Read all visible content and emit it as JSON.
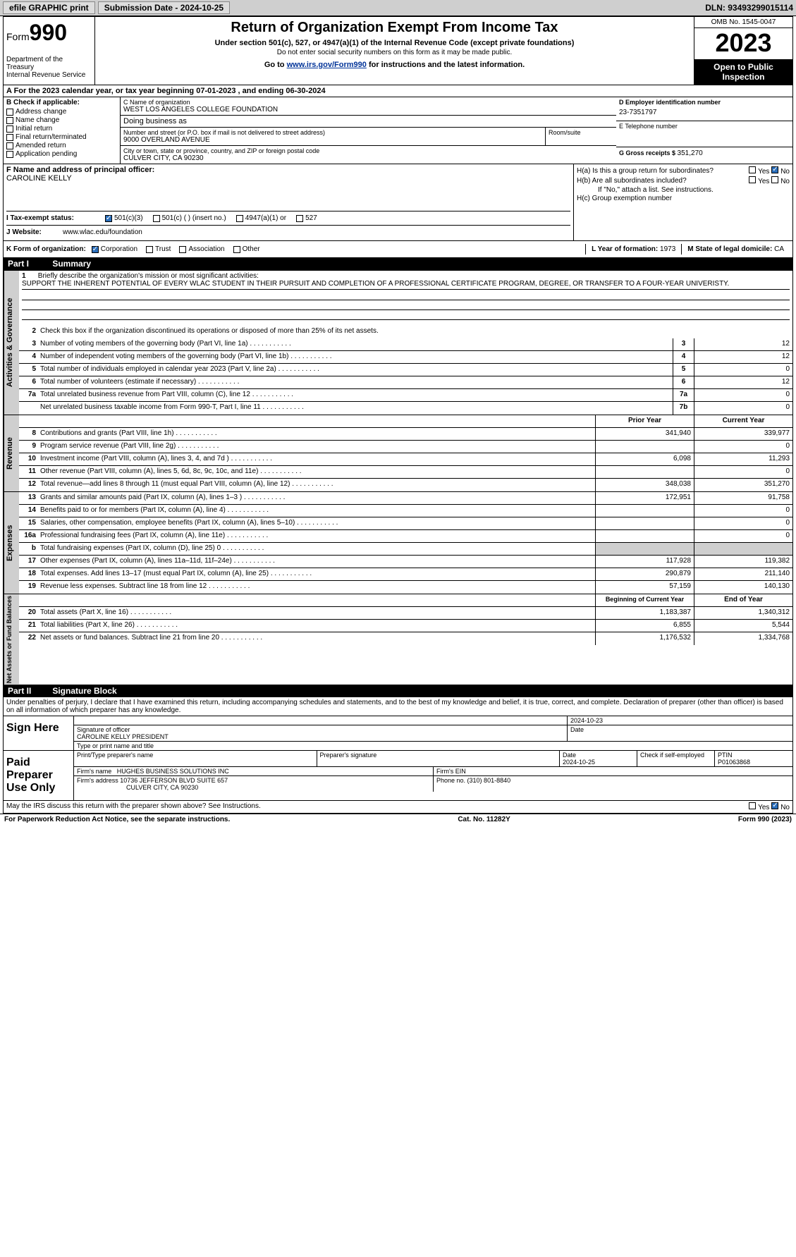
{
  "topbar": {
    "efile": "efile GRAPHIC print",
    "submission_label": "Submission Date - ",
    "submission_date": "2024-10-25",
    "dln_label": "DLN: ",
    "dln": "93493299015114"
  },
  "header": {
    "form_prefix": "Form",
    "form_no": "990",
    "dept": "Department of the Treasury",
    "irs": "Internal Revenue Service",
    "title": "Return of Organization Exempt From Income Tax",
    "under": "Under section 501(c), 527, or 4947(a)(1) of the Internal Revenue Code (except private foundations)",
    "ssn": "Do not enter social security numbers on this form as it may be made public.",
    "goto": "Go to ",
    "goto_link": "www.irs.gov/Form990",
    "goto_suffix": " for instructions and the latest information.",
    "omb": "OMB No. 1545-0047",
    "year": "2023",
    "inspect": "Open to Public Inspection"
  },
  "row_a": {
    "text_a": "A For the 2023 calendar year, or tax year beginning ",
    "begin": "07-01-2023",
    "mid": " , and ending ",
    "end": "06-30-2024"
  },
  "col_b": {
    "lead": "B Check if applicable:",
    "items": [
      "Address change",
      "Name change",
      "Initial return",
      "Final return/terminated",
      "Amended return",
      "Application pending"
    ]
  },
  "col_c": {
    "name_lbl": "C Name of organization",
    "name": "WEST LOS ANGELES COLLEGE FOUNDATION",
    "dba_lbl": "Doing business as",
    "dba": "",
    "street_lbl": "Number and street (or P.O. box if mail is not delivered to street address)",
    "street": "9000 OVERLAND AVENUE",
    "room_lbl": "Room/suite",
    "room": "",
    "city_lbl": "City or town, state or province, country, and ZIP or foreign postal code",
    "city": "CULVER CITY, CA  90230"
  },
  "col_d": {
    "d_lbl": "D Employer identification number",
    "d_val": "23-7351797",
    "e_lbl": "E Telephone number",
    "e_val": "",
    "g_lbl": "G Gross receipts $ ",
    "g_val": "351,270"
  },
  "sec_f": {
    "f_lbl": "F Name and address of principal officer:",
    "f_name": "CAROLINE KELLY",
    "ha": "H(a)  Is this a group return for subordinates?",
    "hb": "H(b)  Are all subordinates included?",
    "hb_note": "If \"No,\" attach a list. See instructions.",
    "hc": "H(c)  Group exemption number ",
    "yes": "Yes",
    "no": "No"
  },
  "i_row": {
    "lbl": "I     Tax-exempt status:",
    "opts": [
      "501(c)(3)",
      "501(c) (  ) (insert no.)",
      "4947(a)(1) or",
      "527"
    ]
  },
  "j_row": {
    "lbl": "J    Website: ",
    "val": "www.wlac.edu/foundation"
  },
  "k_row": {
    "lbl": "K Form of organization:",
    "opts": [
      "Corporation",
      "Trust",
      "Association",
      "Other"
    ],
    "l_lbl": "L Year of formation: ",
    "l_val": "1973",
    "m_lbl": "M State of legal domicile: ",
    "m_val": "CA"
  },
  "part1": {
    "hdr_no": "Part I",
    "hdr_title": "Summary",
    "q1_lbl": "1",
    "q1_txt": "Briefly describe the organization's mission or most significant activities:",
    "q1_val": "SUPPORT THE INHERENT POTENTIAL OF EVERY WLAC STUDENT IN THEIR PURSUIT AND COMPLETION OF A PROFESSIONAL CERTIFICATE PROGRAM, DEGREE, OR TRANSFER TO A FOUR-YEAR UNIVERISTY.",
    "q2_txt": "Check this box     if the organization discontinued its operations or disposed of more than 25% of its net assets.",
    "vtab_ag": "Activities & Governance",
    "vtab_rev": "Revenue",
    "vtab_exp": "Expenses",
    "vtab_net": "Net Assets or Fund Balances",
    "rows_ag": [
      {
        "no": "3",
        "txt": "Number of voting members of the governing body (Part VI, line 1a)",
        "box": "3",
        "amt": "12"
      },
      {
        "no": "4",
        "txt": "Number of independent voting members of the governing body (Part VI, line 1b)",
        "box": "4",
        "amt": "12"
      },
      {
        "no": "5",
        "txt": "Total number of individuals employed in calendar year 2023 (Part V, line 2a)",
        "box": "5",
        "amt": "0"
      },
      {
        "no": "6",
        "txt": "Total number of volunteers (estimate if necessary)",
        "box": "6",
        "amt": "12"
      },
      {
        "no": "7a",
        "txt": "Total unrelated business revenue from Part VIII, column (C), line 12",
        "box": "7a",
        "amt": "0"
      },
      {
        "no": "",
        "txt": "Net unrelated business taxable income from Form 990-T, Part I, line 11",
        "box": "7b",
        "amt": "0"
      }
    ],
    "col_hdr_prior": "Prior Year",
    "col_hdr_curr": "Current Year",
    "rows_rev": [
      {
        "no": "8",
        "txt": "Contributions and grants (Part VIII, line 1h)",
        "p": "341,940",
        "c": "339,977"
      },
      {
        "no": "9",
        "txt": "Program service revenue (Part VIII, line 2g)",
        "p": "",
        "c": "0"
      },
      {
        "no": "10",
        "txt": "Investment income (Part VIII, column (A), lines 3, 4, and 7d )",
        "p": "6,098",
        "c": "11,293"
      },
      {
        "no": "11",
        "txt": "Other revenue (Part VIII, column (A), lines 5, 6d, 8c, 9c, 10c, and 11e)",
        "p": "",
        "c": "0"
      },
      {
        "no": "12",
        "txt": "Total revenue—add lines 8 through 11 (must equal Part VIII, column (A), line 12)",
        "p": "348,038",
        "c": "351,270"
      }
    ],
    "rows_exp": [
      {
        "no": "13",
        "txt": "Grants and similar amounts paid (Part IX, column (A), lines 1–3 )",
        "p": "172,951",
        "c": "91,758"
      },
      {
        "no": "14",
        "txt": "Benefits paid to or for members (Part IX, column (A), line 4)",
        "p": "",
        "c": "0"
      },
      {
        "no": "15",
        "txt": "Salaries, other compensation, employee benefits (Part IX, column (A), lines 5–10)",
        "p": "",
        "c": "0"
      },
      {
        "no": "16a",
        "txt": "Professional fundraising fees (Part IX, column (A), line 11e)",
        "p": "",
        "c": "0"
      },
      {
        "no": "b",
        "txt": "Total fundraising expenses (Part IX, column (D), line 25) 0",
        "p": "shade",
        "c": "shade"
      },
      {
        "no": "17",
        "txt": "Other expenses (Part IX, column (A), lines 11a–11d, 11f–24e)",
        "p": "117,928",
        "c": "119,382"
      },
      {
        "no": "18",
        "txt": "Total expenses. Add lines 13–17 (must equal Part IX, column (A), line 25)",
        "p": "290,879",
        "c": "211,140"
      },
      {
        "no": "19",
        "txt": "Revenue less expenses. Subtract line 18 from line 12",
        "p": "57,159",
        "c": "140,130"
      }
    ],
    "col_hdr_begin": "Beginning of Current Year",
    "col_hdr_end": "End of Year",
    "rows_net": [
      {
        "no": "20",
        "txt": "Total assets (Part X, line 16)",
        "p": "1,183,387",
        "c": "1,340,312"
      },
      {
        "no": "21",
        "txt": "Total liabilities (Part X, line 26)",
        "p": "6,855",
        "c": "5,544"
      },
      {
        "no": "22",
        "txt": "Net assets or fund balances. Subtract line 21 from line 20",
        "p": "1,176,532",
        "c": "1,334,768"
      }
    ]
  },
  "part2": {
    "hdr_no": "Part II",
    "hdr_title": "Signature Block",
    "perjury": "Under penalties of perjury, I declare that I have examined this return, including accompanying schedules and statements, and to the best of my knowledge and belief, it is true, correct, and complete. Declaration of preparer (other than officer) is based on all information of which preparer has any knowledge.",
    "sign_here": "Sign Here",
    "sig_officer_lbl": "Signature of officer",
    "sig_officer": "CAROLINE KELLY PRESIDENT",
    "sig_type_lbl": "Type or print name and title",
    "sig_date": "2024-10-23",
    "date_lbl": "Date",
    "paid_prep": "Paid Preparer Use Only",
    "prep_name_lbl": "Print/Type preparer's name",
    "prep_sig_lbl": "Preparer's signature",
    "prep_date": "2024-10-25",
    "check_if": "Check     if self-employed",
    "ptin_lbl": "PTIN",
    "ptin": "P01063868",
    "firm_name_lbl": "Firm's name ",
    "firm_name": "HUGHES BUSINESS SOLUTIONS INC",
    "firm_ein_lbl": "Firm's EIN ",
    "firm_addr_lbl": "Firm's address ",
    "firm_addr": "10736 JEFFERSON BLVD SUITE 657",
    "firm_city": "CULVER CITY, CA  90230",
    "phone_lbl": "Phone no. ",
    "phone": "(310) 801-8840",
    "may_irs": "May the IRS discuss this return with the preparer shown above? See Instructions."
  },
  "footer": {
    "pra": "For Paperwork Reduction Act Notice, see the separate instructions.",
    "cat": "Cat. No. 11282Y",
    "form": "Form 990 (2023)"
  }
}
